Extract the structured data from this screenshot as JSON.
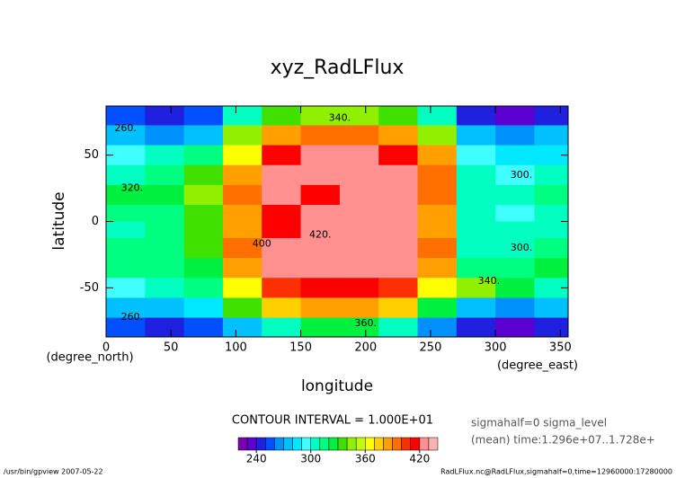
{
  "chart_data": {
    "type": "contour",
    "title": "xyz_RadLFlux",
    "x_label": "longitude",
    "y_label": "latitude",
    "x_unit": "(degree_east)",
    "y_unit": "(degree_north)",
    "xlim": [
      0,
      356
    ],
    "ylim": [
      -87,
      87
    ],
    "xticks": [
      0,
      50,
      100,
      150,
      200,
      250,
      300,
      350
    ],
    "yticks": [
      -50,
      0,
      50
    ],
    "x": [
      15,
      45,
      75,
      105,
      135,
      165,
      195,
      225,
      255,
      285,
      315,
      345
    ],
    "y": [
      80,
      65,
      50,
      35,
      20,
      5,
      -5,
      -20,
      -35,
      -50,
      -65,
      -80
    ],
    "z": [
      [
        250,
        245,
        250,
        300,
        335,
        340,
        340,
        335,
        300,
        240,
        235,
        245
      ],
      [
        270,
        265,
        270,
        340,
        380,
        390,
        390,
        380,
        340,
        270,
        265,
        270
      ],
      [
        290,
        300,
        310,
        360,
        410,
        420,
        420,
        410,
        380,
        290,
        280,
        285
      ],
      [
        305,
        315,
        330,
        380,
        425,
        428,
        425,
        420,
        390,
        300,
        295,
        300
      ],
      [
        320,
        325,
        340,
        390,
        428,
        410,
        425,
        422,
        395,
        305,
        300,
        310
      ],
      [
        310,
        315,
        335,
        385,
        415,
        428,
        428,
        420,
        385,
        300,
        295,
        305
      ],
      [
        305,
        310,
        330,
        380,
        410,
        428,
        428,
        420,
        380,
        300,
        300,
        305
      ],
      [
        310,
        315,
        335,
        390,
        420,
        425,
        428,
        425,
        390,
        300,
        305,
        310
      ],
      [
        315,
        310,
        320,
        380,
        422,
        428,
        428,
        422,
        380,
        310,
        315,
        320
      ],
      [
        290,
        300,
        310,
        360,
        400,
        415,
        415,
        405,
        360,
        340,
        320,
        300
      ],
      [
        270,
        275,
        280,
        330,
        370,
        380,
        380,
        370,
        320,
        270,
        265,
        270
      ],
      [
        250,
        245,
        250,
        270,
        300,
        320,
        320,
        300,
        260,
        240,
        235,
        245
      ]
    ],
    "levels": [
      220,
      230,
      240,
      250,
      260,
      270,
      280,
      290,
      300,
      310,
      320,
      330,
      340,
      350,
      360,
      370,
      380,
      390,
      400,
      410,
      420,
      430,
      440
    ],
    "colors": [
      "#7a00b0",
      "#5a00d0",
      "#2020e0",
      "#0050ff",
      "#0090ff",
      "#00c0ff",
      "#00e8ff",
      "#40ffff",
      "#00ffc0",
      "#00ff80",
      "#00f040",
      "#40e000",
      "#90f000",
      "#c0ff00",
      "#ffff00",
      "#ffd000",
      "#ffa000",
      "#ff7000",
      "#ff3000",
      "#ff0000",
      "#ff9090",
      "#ffb0b0"
    ],
    "colorbar_ticks": [
      240,
      300,
      360,
      420
    ],
    "contour_interval": "CONTOUR INTERVAL = 1.000E+01",
    "contour_labels": [
      {
        "lon": 180,
        "lat": 78,
        "value": 340,
        "label": "340."
      },
      {
        "lon": 15,
        "lat": 70,
        "value": 260,
        "label": "260."
      },
      {
        "lon": 20,
        "lat": 25,
        "value": 320,
        "label": "320."
      },
      {
        "lon": 320,
        "lat": 35,
        "value": 300,
        "label": "300."
      },
      {
        "lon": 120,
        "lat": -17,
        "value": 400,
        "label": "400"
      },
      {
        "lon": 165,
        "lat": -10,
        "value": 420,
        "label": "420."
      },
      {
        "lon": 320,
        "lat": -20,
        "value": 300,
        "label": "300."
      },
      {
        "lon": 295,
        "lat": -45,
        "value": 340,
        "label": "340."
      },
      {
        "lon": 200,
        "lat": -77,
        "value": 360,
        "label": "360."
      },
      {
        "lon": 20,
        "lat": -72,
        "value": 260,
        "label": "260."
      }
    ],
    "info": [
      "sigmahalf=0 sigma_level",
      "(mean) time:1.296e+07..1.728e+"
    ],
    "footer_left": "/usr/bin/gpview  2007-05-22",
    "footer_right": "RadLFlux.nc@RadLFlux,sigmahalf=0,time=12960000:17280000"
  }
}
